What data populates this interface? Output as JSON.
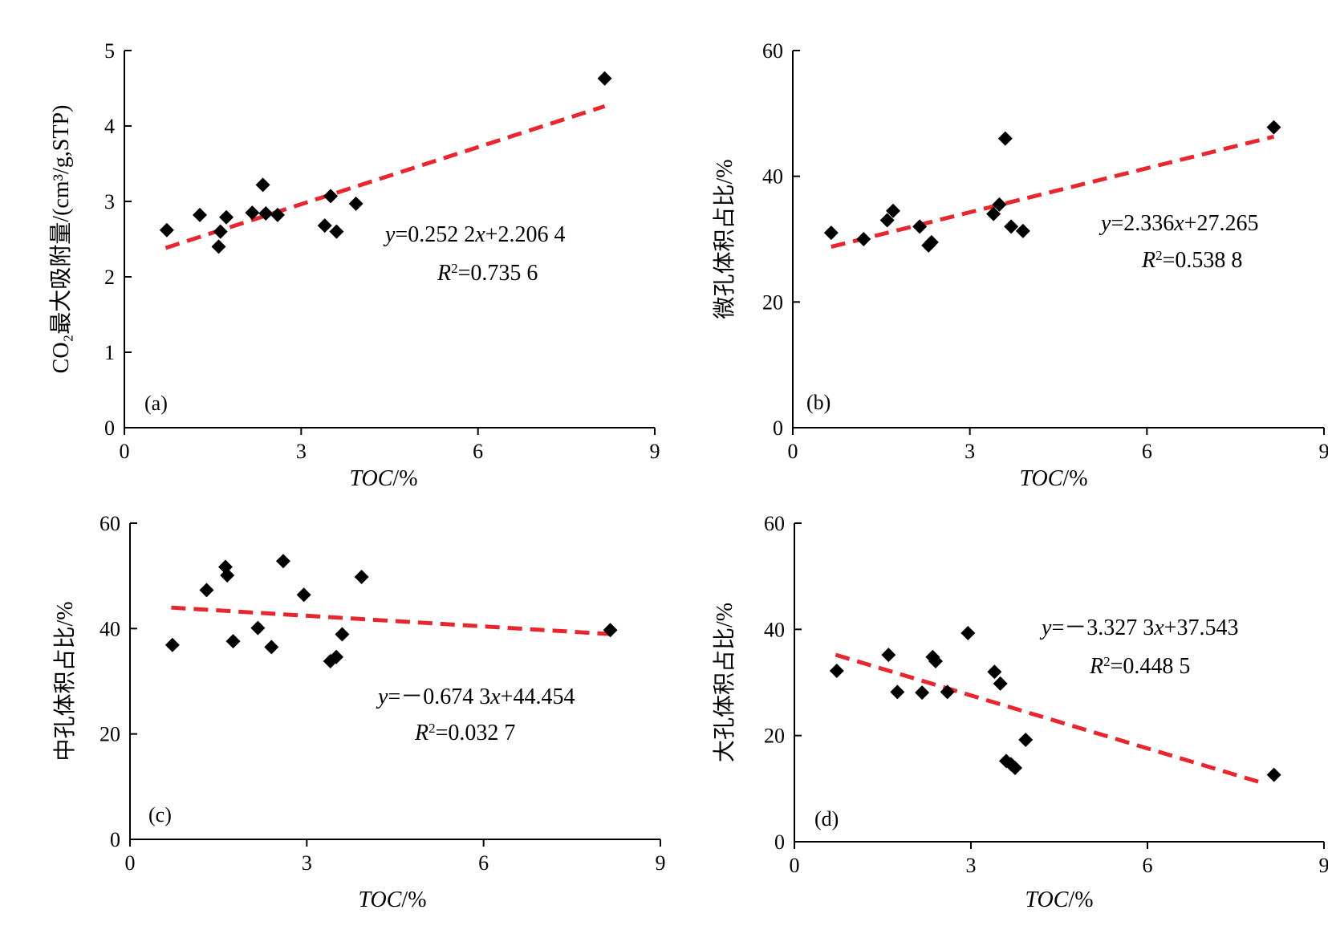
{
  "chart_data": [
    {
      "type": "scatter",
      "panel_label": "(a)",
      "xlabel": "TOC/%",
      "ylabel": "CO₂最大吸附量/(cm³/g,STP)",
      "xlim": [
        0,
        9
      ],
      "ylim": [
        0,
        5
      ],
      "xticks": [
        "0",
        "3",
        "6",
        "9"
      ],
      "yticks": [
        "0",
        "1",
        "2",
        "3",
        "4",
        "5"
      ],
      "points": [
        {
          "x": 0.72,
          "y": 2.62
        },
        {
          "x": 1.28,
          "y": 2.82
        },
        {
          "x": 1.6,
          "y": 2.4
        },
        {
          "x": 1.63,
          "y": 2.6
        },
        {
          "x": 1.73,
          "y": 2.79
        },
        {
          "x": 2.17,
          "y": 2.85
        },
        {
          "x": 2.35,
          "y": 3.22
        },
        {
          "x": 2.4,
          "y": 2.84
        },
        {
          "x": 2.6,
          "y": 2.82
        },
        {
          "x": 3.4,
          "y": 2.68
        },
        {
          "x": 3.5,
          "y": 3.07
        },
        {
          "x": 3.6,
          "y": 2.6
        },
        {
          "x": 3.93,
          "y": 2.97
        },
        {
          "x": 8.15,
          "y": 4.63
        }
      ],
      "trendline": {
        "x": [
          0.7,
          8.15
        ],
        "color": "#e8262d",
        "slope": 0.2522,
        "intercept": 2.2064
      },
      "equation_y": "y",
      "equation_rest": "=0.252 2",
      "equation_x": "x",
      "equation_tail": "+2.206 4",
      "r2_value": "=0.735 6"
    },
    {
      "type": "scatter",
      "panel_label": "(b)",
      "xlabel": "TOC/%",
      "ylabel": "微孔体积占比/%",
      "xlim": [
        0,
        9
      ],
      "ylim": [
        0,
        60
      ],
      "xticks": [
        "0",
        "3",
        "6",
        "9"
      ],
      "yticks": [
        "0",
        "20",
        "40",
        "60"
      ],
      "points": [
        {
          "x": 0.65,
          "y": 31
        },
        {
          "x": 1.2,
          "y": 30
        },
        {
          "x": 1.6,
          "y": 33
        },
        {
          "x": 1.7,
          "y": 34.5
        },
        {
          "x": 2.15,
          "y": 32
        },
        {
          "x": 2.3,
          "y": 29
        },
        {
          "x": 2.35,
          "y": 29.5
        },
        {
          "x": 3.4,
          "y": 34
        },
        {
          "x": 3.5,
          "y": 35.5
        },
        {
          "x": 3.6,
          "y": 46
        },
        {
          "x": 3.7,
          "y": 32
        },
        {
          "x": 3.9,
          "y": 31.3
        },
        {
          "x": 8.15,
          "y": 47.8
        }
      ],
      "trendline": {
        "x": [
          0.65,
          8.15
        ],
        "color": "#e8262d",
        "slope": 2.336,
        "intercept": 27.265
      },
      "equation_y": "y",
      "equation_rest": "=2.336",
      "equation_x": "x",
      "equation_tail": "+27.265",
      "r2_value": "=0.538 8"
    },
    {
      "type": "scatter",
      "panel_label": "(c)",
      "xlabel": "TOC/%",
      "ylabel": "中孔体积占比/%",
      "xlim": [
        0,
        9
      ],
      "ylim": [
        0,
        60
      ],
      "xticks": [
        "0",
        "3",
        "6",
        "9"
      ],
      "yticks": [
        "0",
        "20",
        "40",
        "60"
      ],
      "points": [
        {
          "x": 0.72,
          "y": 36.9
        },
        {
          "x": 1.3,
          "y": 47.3
        },
        {
          "x": 1.62,
          "y": 51.7
        },
        {
          "x": 1.65,
          "y": 50.1
        },
        {
          "x": 1.75,
          "y": 37.6
        },
        {
          "x": 2.17,
          "y": 40.1
        },
        {
          "x": 2.4,
          "y": 36.5
        },
        {
          "x": 2.6,
          "y": 52.8
        },
        {
          "x": 2.95,
          "y": 46.4
        },
        {
          "x": 3.4,
          "y": 33.8
        },
        {
          "x": 3.5,
          "y": 34.6
        },
        {
          "x": 3.6,
          "y": 38.9
        },
        {
          "x": 3.93,
          "y": 49.8
        },
        {
          "x": 8.15,
          "y": 39.7
        }
      ],
      "trendline": {
        "x": [
          0.7,
          8.15
        ],
        "color": "#e8262d",
        "slope": -0.6743,
        "intercept": 44.454
      },
      "equation_y": "y",
      "equation_rest": "=－0.674 3",
      "equation_x": "x",
      "equation_tail": "+44.454",
      "r2_value": "=0.032 7"
    },
    {
      "type": "scatter",
      "panel_label": "(d)",
      "xlabel": "TOC/%",
      "ylabel": "大孔体积占比/%",
      "xlim": [
        0,
        9
      ],
      "ylim": [
        0,
        60
      ],
      "xticks": [
        "0",
        "3",
        "6",
        "9"
      ],
      "yticks": [
        "0",
        "20",
        "40",
        "60"
      ],
      "points": [
        {
          "x": 0.72,
          "y": 32.2
        },
        {
          "x": 1.6,
          "y": 35.2
        },
        {
          "x": 1.75,
          "y": 28.2
        },
        {
          "x": 2.17,
          "y": 28.1
        },
        {
          "x": 2.35,
          "y": 34.8
        },
        {
          "x": 2.4,
          "y": 34
        },
        {
          "x": 2.6,
          "y": 28.2
        },
        {
          "x": 2.95,
          "y": 39.3
        },
        {
          "x": 3.4,
          "y": 32
        },
        {
          "x": 3.5,
          "y": 29.8
        },
        {
          "x": 3.6,
          "y": 15.2
        },
        {
          "x": 3.68,
          "y": 14.6
        },
        {
          "x": 3.75,
          "y": 13.9
        },
        {
          "x": 3.93,
          "y": 19.2
        },
        {
          "x": 8.15,
          "y": 12.6
        }
      ],
      "trendline": {
        "x": [
          0.7,
          8.0
        ],
        "color": "#e8262d",
        "slope": -3.3273,
        "intercept": 37.543
      },
      "equation_y": "y",
      "equation_rest": "=－3.327 3",
      "equation_x": "x",
      "equation_tail": "+37.543",
      "r2_value": "=0.448 5"
    }
  ]
}
